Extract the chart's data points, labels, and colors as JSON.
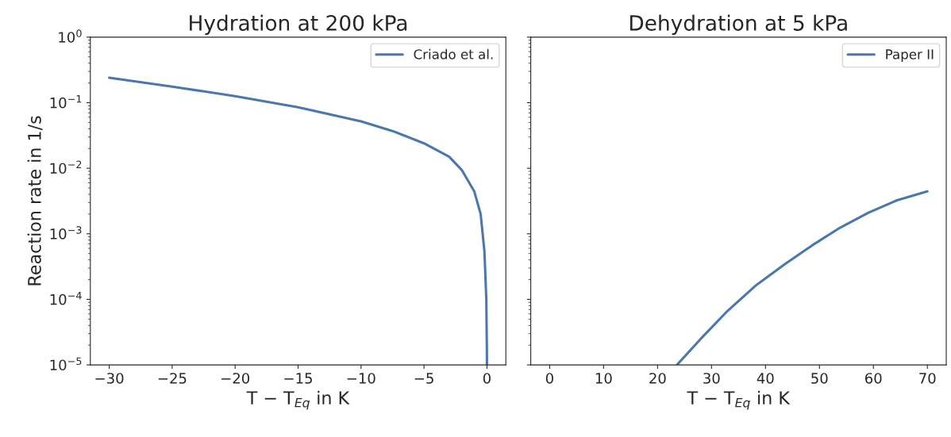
{
  "chart_data": [
    {
      "type": "line",
      "title": "Hydration at 200 kPa",
      "xlabel": "T − T$_{Eq}$ in K",
      "ylabel": "Reaction rate in 1/s",
      "log": "y",
      "legend": "top right",
      "xlim": [
        -31.5,
        1.5
      ],
      "xticks": [
        {
          "value": -30,
          "label": "−30"
        },
        {
          "value": -25,
          "label": "−25"
        },
        {
          "value": -20,
          "label": "−20"
        },
        {
          "value": -15,
          "label": "−15"
        },
        {
          "value": -10,
          "label": "−10"
        },
        {
          "value": -5,
          "label": "−5"
        },
        0
      ],
      "ylim": [
        1e-05,
        1
      ],
      "yticks": [
        {
          "value": 1e-05,
          "label": "10$^{−5}$"
        },
        {
          "value": 0.0001,
          "label": "10$^{−4}$"
        },
        {
          "value": 0.001,
          "label": "10$^{−3}$"
        },
        {
          "value": 0.01,
          "label": "10$^{−2}$"
        },
        {
          "value": 0.1,
          "label": "10$^{−1}$"
        },
        {
          "value": 1,
          "label": "10$^{0}$"
        }
      ],
      "series": [
        {
          "name": "Criado et al.",
          "color": "#4a78ad",
          "x": [
            -30,
            -25,
            -20,
            -15,
            -10,
            -7.5,
            -5,
            -3,
            -2,
            -1,
            -0.5,
            -0.2,
            -0.05,
            -0.01,
            0
          ],
          "values": [
            0.24,
            0.176,
            0.126,
            0.085,
            0.052,
            0.037,
            0.024,
            0.015,
            0.0094,
            0.0044,
            0.002,
            0.00054,
            0.0001,
            2e-05,
            1e-05
          ]
        }
      ]
    },
    {
      "type": "line",
      "title": "Dehydration at 5 kPa",
      "xlabel": "T − T$_{Eq}$ in K",
      "log": "y",
      "legend": "top right",
      "tick_labels": "x",
      "xlim": [
        -3.5,
        73.5
      ],
      "xticks": [
        0,
        10,
        20,
        30,
        40,
        50,
        60,
        70
      ],
      "ylim": [
        1e-05,
        1
      ],
      "yticks": [
        {
          "value": 1e-05,
          "label": null
        },
        {
          "value": 0.0001,
          "label": null
        },
        {
          "value": 0.001,
          "label": null
        },
        {
          "value": 0.01,
          "label": null
        },
        {
          "value": 0.1,
          "label": null
        },
        {
          "value": 1,
          "label": null
        }
      ],
      "series": [
        {
          "name": "Paper II",
          "color": "#4a78ad",
          "x": [
            23.6,
            27.8,
            33,
            38.3,
            43.5,
            48.7,
            53.9,
            59.1,
            64.4,
            70
          ],
          "values": [
            1e-05,
            2.4e-05,
            6.7e-05,
            0.000165,
            0.00034,
            0.00067,
            0.00125,
            0.0021,
            0.00325,
            0.00445
          ]
        }
      ]
    }
  ]
}
